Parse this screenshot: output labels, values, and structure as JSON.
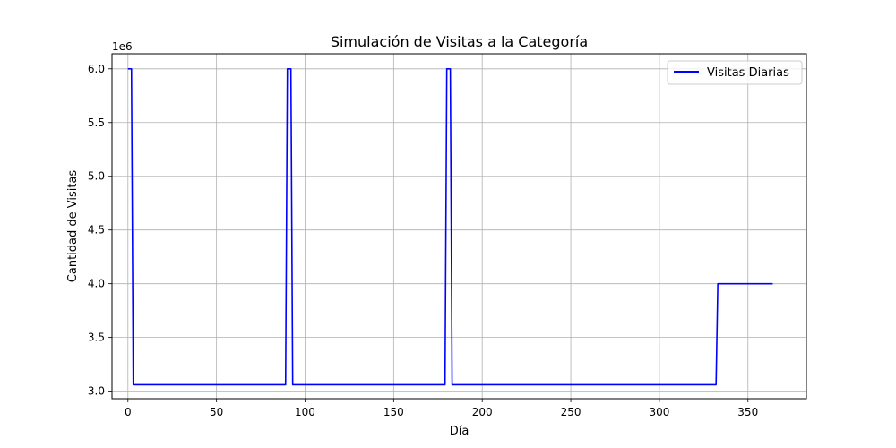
{
  "chart_data": {
    "type": "line",
    "title": "Simulación de Visitas a la Categoría",
    "xlabel": "Día",
    "ylabel": "Cantidad de Visitas",
    "y_offset_text": "1e6",
    "xlim": [
      -9,
      383
    ],
    "ylim": [
      2.93,
      6.14
    ],
    "x_ticks": [
      0,
      50,
      100,
      150,
      200,
      250,
      300,
      350
    ],
    "y_ticks": [
      3.0,
      3.5,
      4.0,
      4.5,
      5.0,
      5.5,
      6.0
    ],
    "y_tick_labels": [
      "3.0",
      "3.5",
      "4.0",
      "4.5",
      "5.0",
      "5.5",
      "6.0"
    ],
    "grid": true,
    "legend_position": "top-right",
    "series": [
      {
        "name": "Visitas Diarias",
        "color": "#0000ff",
        "x": [
          0,
          2,
          3,
          89,
          90,
          92,
          93,
          179,
          180,
          182,
          183,
          332,
          333,
          364
        ],
        "y": [
          6.0,
          6.0,
          3.06,
          3.06,
          6.0,
          6.0,
          3.06,
          3.06,
          6.0,
          6.0,
          3.06,
          3.06,
          4.0,
          4.0
        ]
      }
    ]
  }
}
